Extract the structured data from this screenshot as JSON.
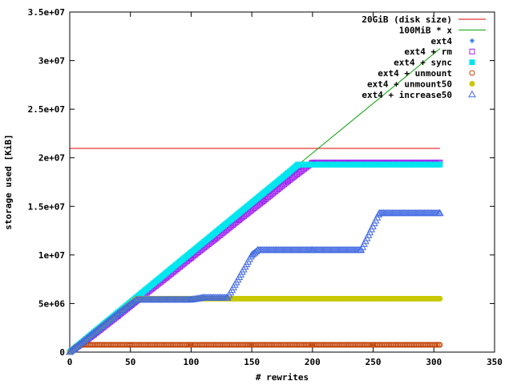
{
  "chart_data": {
    "type": "scatter",
    "title": "",
    "xlabel": "# rewrites",
    "ylabel": "storage used [KiB]",
    "xlim": [
      0,
      350
    ],
    "ylim": [
      0,
      35000000
    ],
    "x_ticks": [
      0,
      50,
      100,
      150,
      200,
      250,
      300,
      350
    ],
    "x_tick_labels": [
      "0",
      "50",
      "100",
      "150",
      "200",
      "250",
      "300",
      "350"
    ],
    "y_ticks": [
      0,
      5000000,
      10000000,
      15000000,
      20000000,
      25000000,
      30000000,
      35000000
    ],
    "y_tick_labels": [
      "0",
      "5e+06",
      "1e+07",
      "1.5e+07",
      "2e+07",
      "2.5e+07",
      "3e+07",
      "3.5e+07"
    ],
    "legend_position": "top-right",
    "grid": false,
    "series": [
      {
        "name": "20GiB (disk size)",
        "style": "line",
        "marker": "none",
        "color": "#e00000",
        "x": [
          0,
          305
        ],
        "y": [
          20971520,
          20971520
        ]
      },
      {
        "name": "100MiB * x",
        "style": "line",
        "marker": "none",
        "color": "#00a000",
        "x": [
          0,
          305
        ],
        "y": [
          0,
          31232000
        ]
      },
      {
        "name": "ext4",
        "style": "points",
        "marker": "star",
        "color": "#2b7fe0",
        "x": [
          0,
          10,
          20,
          40,
          60,
          80,
          100,
          120,
          140,
          160,
          180,
          190,
          200,
          230,
          260,
          305
        ],
        "y": [
          0,
          900000,
          1900000,
          3900000,
          5900000,
          7950000,
          9950000,
          12000000,
          14000000,
          16050000,
          18100000,
          19150000,
          19400000,
          19400000,
          19400000,
          19400000
        ]
      },
      {
        "name": "ext4 + rm",
        "style": "points",
        "marker": "square-open",
        "color": "#a020f0",
        "x": [
          0,
          10,
          20,
          40,
          60,
          80,
          100,
          120,
          140,
          160,
          180,
          200,
          205,
          230,
          260,
          305
        ],
        "y": [
          0,
          850000,
          1800000,
          3750000,
          5750000,
          7700000,
          9700000,
          11650000,
          13650000,
          15600000,
          17600000,
          19500000,
          19500000,
          19500000,
          19500000,
          19500000
        ]
      },
      {
        "name": "ext4 + sync",
        "style": "points",
        "marker": "square-filled",
        "color": "#00e5ee",
        "x": [
          0,
          10,
          20,
          40,
          60,
          80,
          100,
          120,
          140,
          160,
          180,
          188,
          200,
          230,
          260,
          305
        ],
        "y": [
          0,
          1000000,
          2050000,
          4100000,
          6150000,
          8200000,
          10250000,
          12300000,
          14350000,
          16400000,
          18450000,
          19300000,
          19300000,
          19300000,
          19300000,
          19300000
        ]
      },
      {
        "name": "ext4 + unmount",
        "style": "points",
        "marker": "circle-open",
        "color": "#c04000",
        "x": [
          0,
          5,
          10,
          50,
          100,
          150,
          200,
          250,
          305
        ],
        "y": [
          0,
          550000,
          750000,
          750000,
          750000,
          750000,
          750000,
          750000,
          750000
        ]
      },
      {
        "name": "ext4 + unmount50",
        "style": "points",
        "marker": "circle-filled",
        "color": "#c8c800",
        "x": [
          0,
          10,
          20,
          40,
          55,
          100,
          150,
          200,
          250,
          305
        ],
        "y": [
          0,
          1000000,
          2000000,
          4000000,
          5500000,
          5500000,
          5500000,
          5500000,
          5500000,
          5500000
        ]
      },
      {
        "name": "ext4 + increase50",
        "style": "points",
        "marker": "triangle-open",
        "color": "#4169e1",
        "x": [
          0,
          10,
          20,
          40,
          55,
          100,
          110,
          130,
          150,
          155,
          200,
          240,
          255,
          305
        ],
        "y": [
          0,
          1000000,
          2000000,
          4000000,
          5400000,
          5400000,
          5600000,
          5600000,
          10000000,
          10500000,
          10500000,
          10500000,
          14300000,
          14300000
        ]
      }
    ]
  }
}
